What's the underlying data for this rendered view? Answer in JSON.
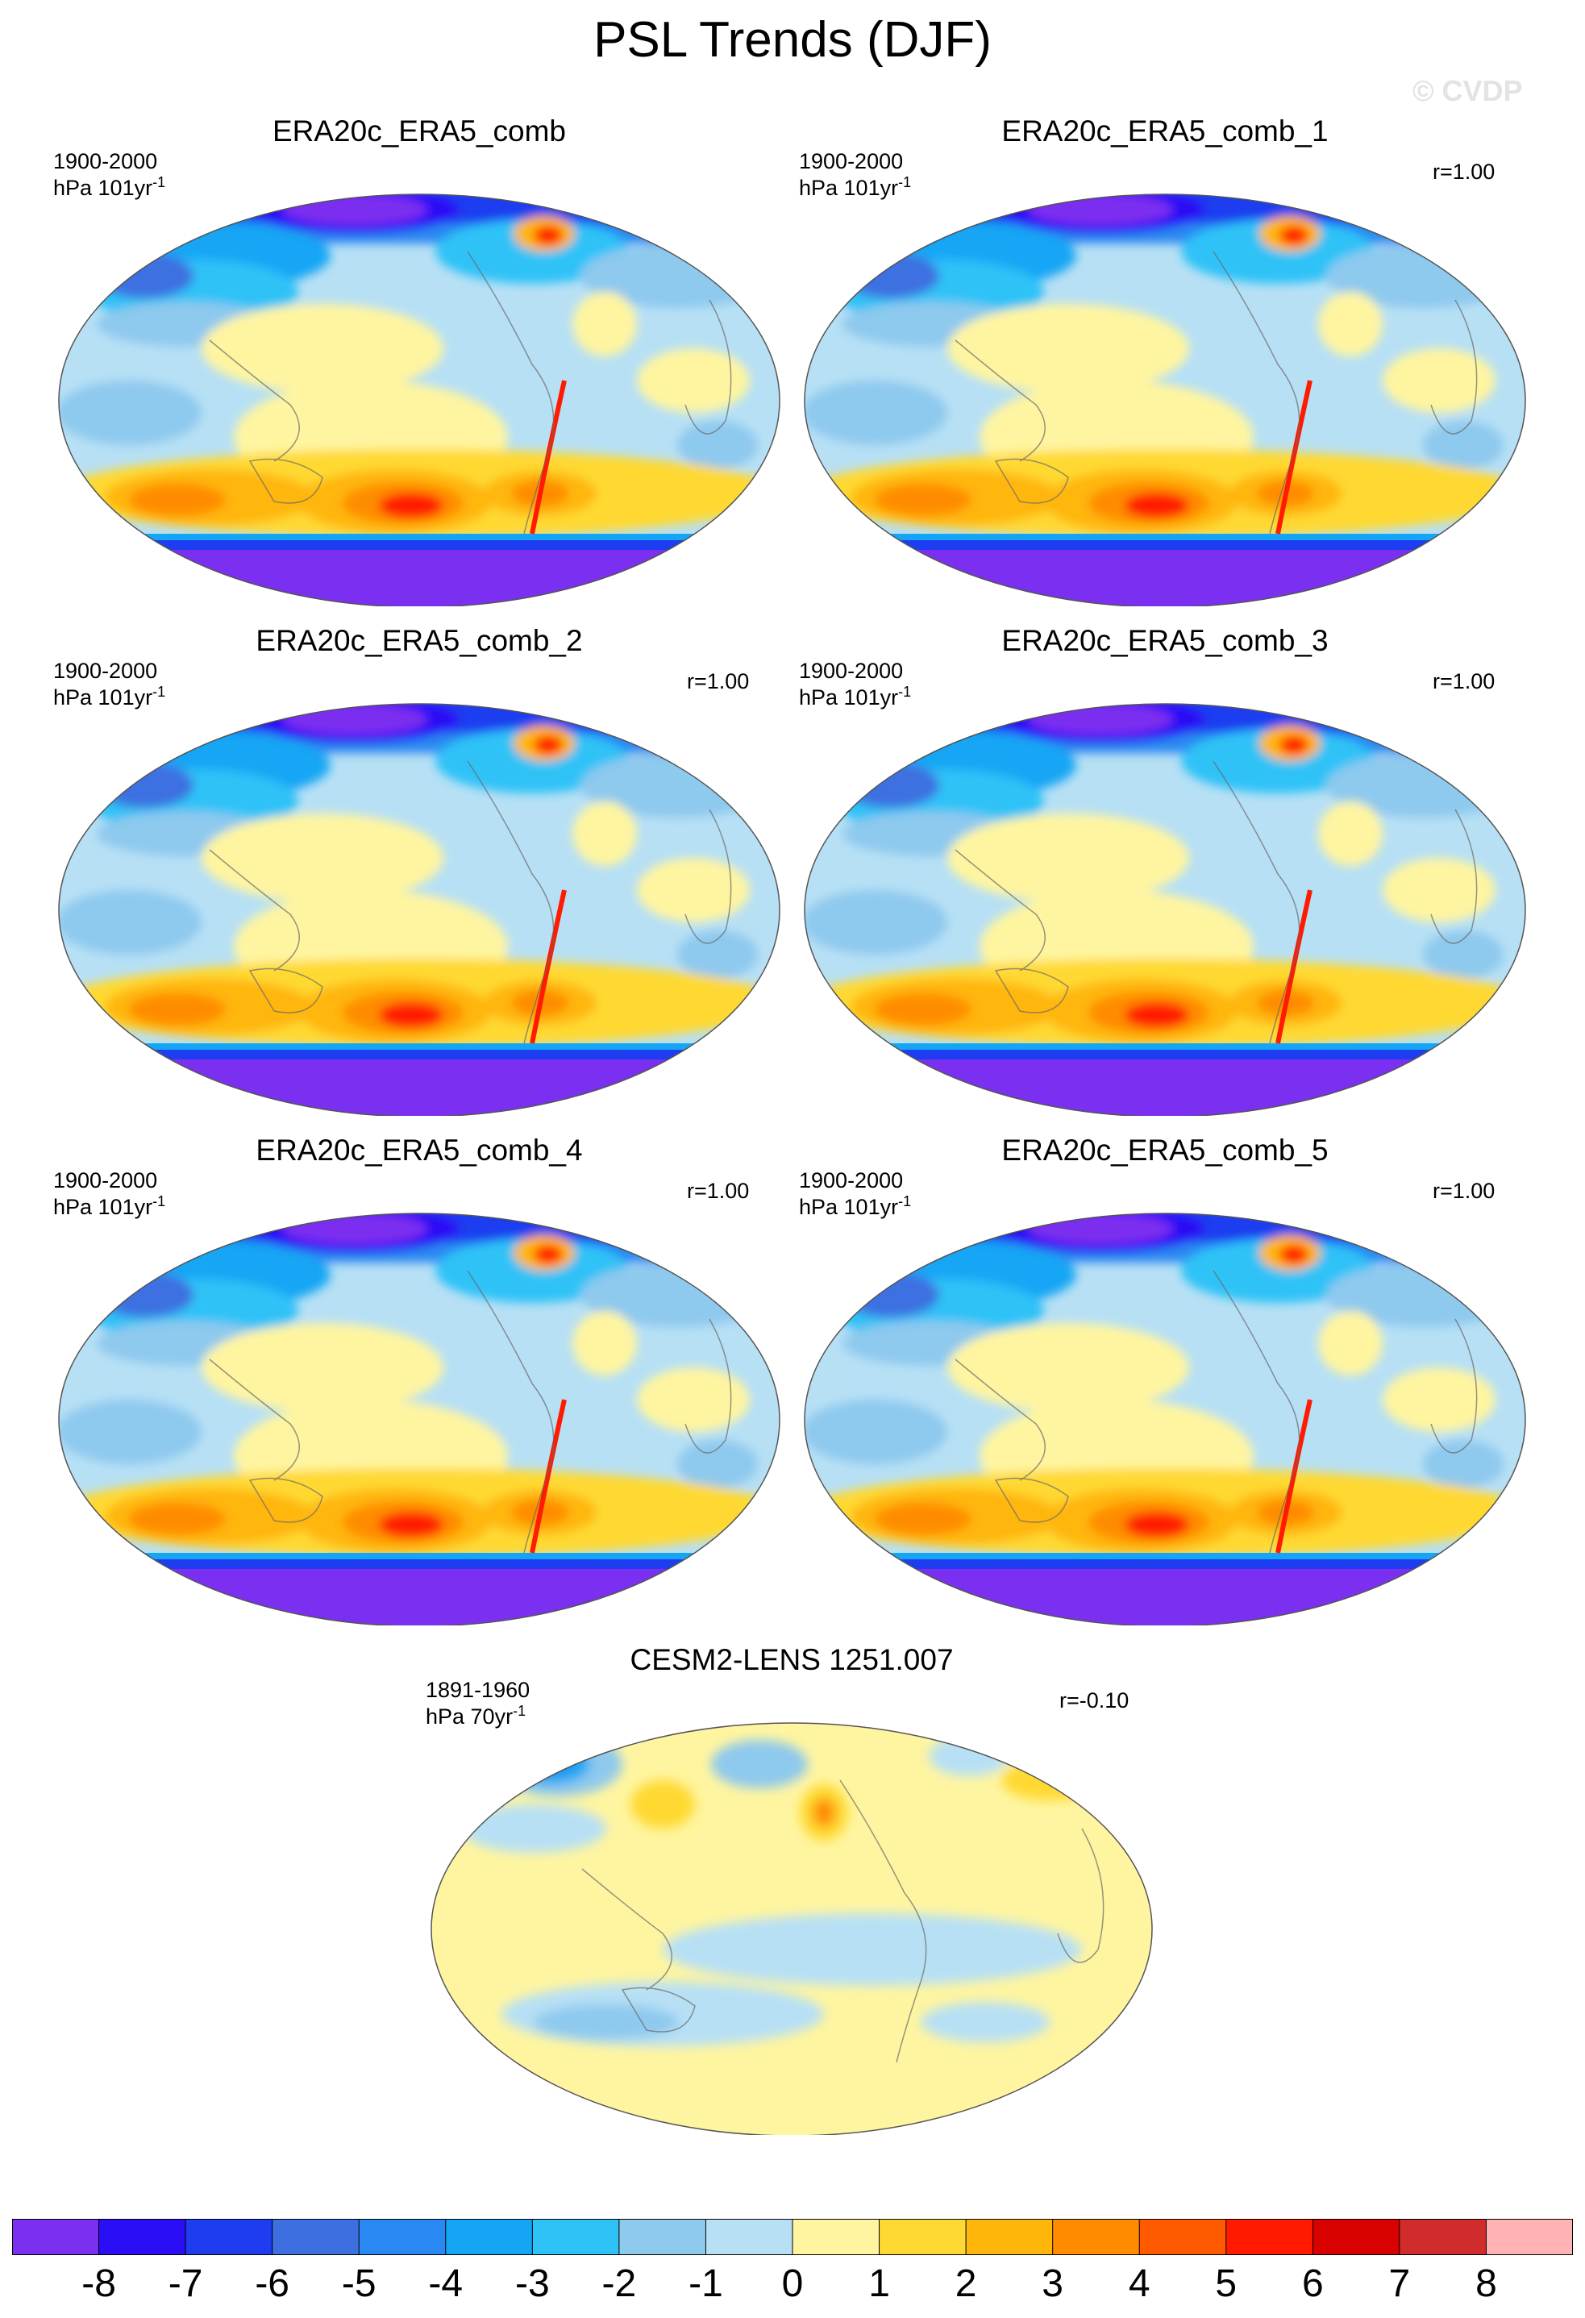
{
  "title": "PSL Trends (DJF)",
  "watermark": "© CVDP",
  "panels": [
    {
      "title": "ERA20c_ERA5_comb",
      "period": "1900-2000",
      "units_base": "hPa 101yr",
      "units_exp": "-1",
      "corr": "",
      "pattern": "obs"
    },
    {
      "title": "ERA20c_ERA5_comb_1",
      "period": "1900-2000",
      "units_base": "hPa 101yr",
      "units_exp": "-1",
      "corr": "r=1.00",
      "pattern": "obs"
    },
    {
      "title": "ERA20c_ERA5_comb_2",
      "period": "1900-2000",
      "units_base": "hPa 101yr",
      "units_exp": "-1",
      "corr": "r=1.00",
      "pattern": "obs"
    },
    {
      "title": "ERA20c_ERA5_comb_3",
      "period": "1900-2000",
      "units_base": "hPa 101yr",
      "units_exp": "-1",
      "corr": "r=1.00",
      "pattern": "obs"
    },
    {
      "title": "ERA20c_ERA5_comb_4",
      "period": "1900-2000",
      "units_base": "hPa 101yr",
      "units_exp": "-1",
      "corr": "r=1.00",
      "pattern": "obs"
    },
    {
      "title": "ERA20c_ERA5_comb_5",
      "period": "1900-2000",
      "units_base": "hPa 101yr",
      "units_exp": "-1",
      "corr": "r=1.00",
      "pattern": "obs"
    },
    {
      "title": "CESM2-LENS 1251.007",
      "period": "1891-1960",
      "units_base": "hPa 70yr",
      "units_exp": "-1",
      "corr": "r=-0.10",
      "pattern": "model"
    }
  ],
  "colorbar": {
    "colors": [
      "#7b2ff0",
      "#2a0ef5",
      "#1e3cf0",
      "#3d6fe0",
      "#2a88f2",
      "#14a6f5",
      "#2ec2f7",
      "#8ec9ee",
      "#b7e0f5",
      "#fff5a0",
      "#ffd933",
      "#ffb60a",
      "#ff8c00",
      "#ff5a00",
      "#ff1a00",
      "#d90000",
      "#d12c2c",
      "#ffb3b3"
    ],
    "labels": [
      "-8",
      "-7",
      "-6",
      "-5",
      "-4",
      "-3",
      "-2",
      "-1",
      "0",
      "1",
      "2",
      "3",
      "4",
      "5",
      "6",
      "7",
      "8"
    ]
  }
}
